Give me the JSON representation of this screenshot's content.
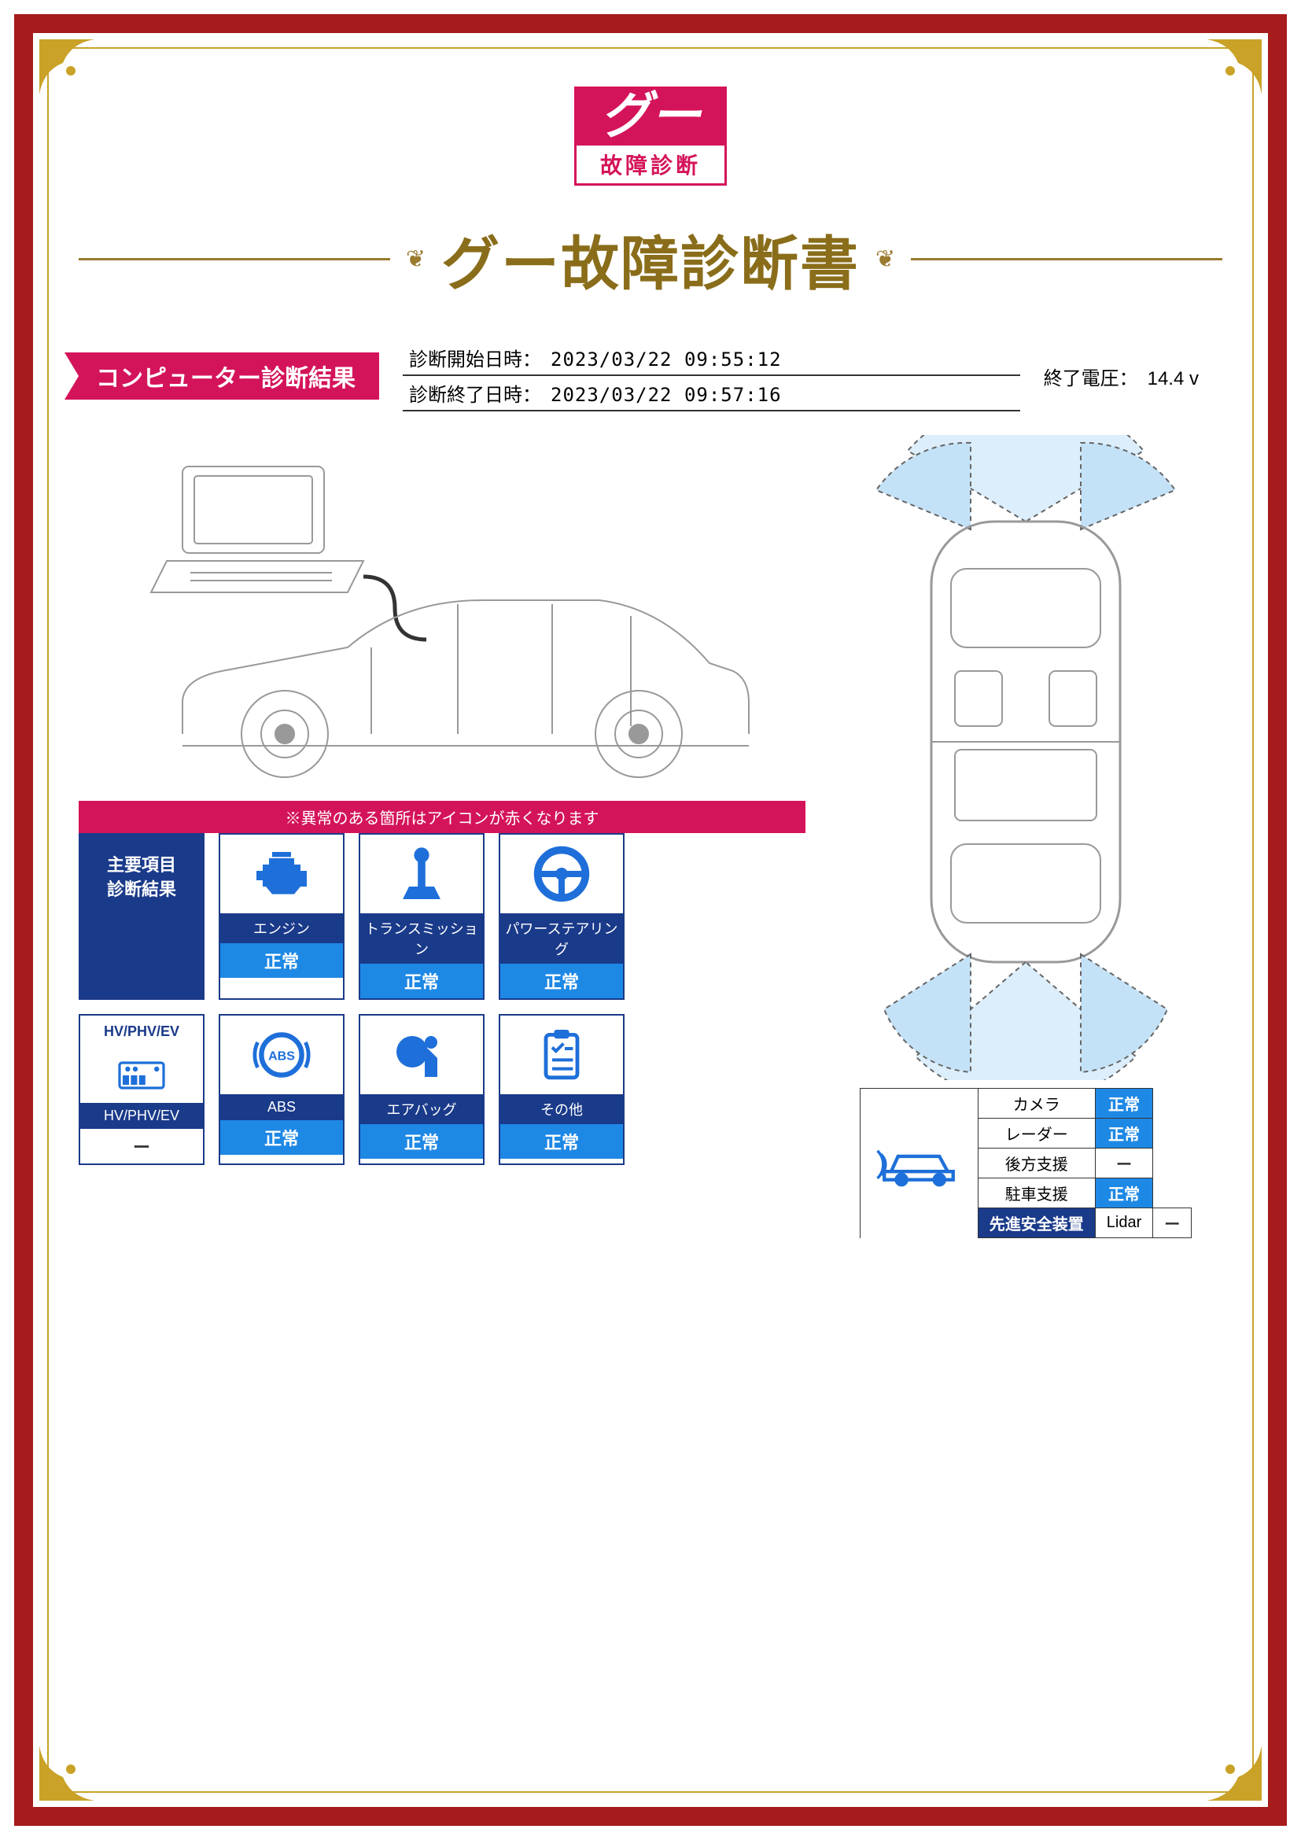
{
  "colors": {
    "frame": "#a61b1b",
    "gold": "#c9a227",
    "brand": "#d4145a",
    "navy": "#1a3a8a",
    "blue": "#1e88e5",
    "icon": "#1e6fd9",
    "title": "#8a6d1a"
  },
  "logo": {
    "brand": "グー",
    "subtext": "故障診断"
  },
  "title": "グー故障診断書",
  "section": {
    "banner": "コンピューター診断結果",
    "start_label": "診断開始日時：",
    "start_value": "2023/03/22 09:55:12",
    "end_label": "診断終了日時：",
    "end_value": "2023/03/22 09:57:16",
    "voltage_label": "終了電圧：",
    "voltage_value": "14.4 v"
  },
  "warning_banner": "※異常のある箇所はアイコンが赤くなります",
  "main_card_header": "主要項目\n診断結果",
  "cards1": [
    {
      "label": "エンジン",
      "status": "正常",
      "icon": "engine"
    },
    {
      "label": "トランスミッション",
      "status": "正常",
      "icon": "transmission"
    },
    {
      "label": "パワーステアリング",
      "status": "正常",
      "icon": "steering"
    }
  ],
  "cards2": [
    {
      "header": "HV/PHV/EV",
      "label": "HV/PHV/EV",
      "status": "ー",
      "icon": "battery"
    },
    {
      "label": "ABS",
      "status": "正常",
      "icon": "abs"
    },
    {
      "label": "エアバッグ",
      "status": "正常",
      "icon": "airbag"
    },
    {
      "label": "その他",
      "status": "正常",
      "icon": "clipboard"
    }
  ],
  "safety": {
    "header": "先進安全装置",
    "rows": [
      {
        "name": "カメラ",
        "status": "正常",
        "ok": true
      },
      {
        "name": "レーダー",
        "status": "正常",
        "ok": true
      },
      {
        "name": "後方支援",
        "status": "ー",
        "ok": false
      },
      {
        "name": "駐車支援",
        "status": "正常",
        "ok": true
      },
      {
        "name": "Lidar",
        "status": "ー",
        "ok": false
      }
    ]
  }
}
